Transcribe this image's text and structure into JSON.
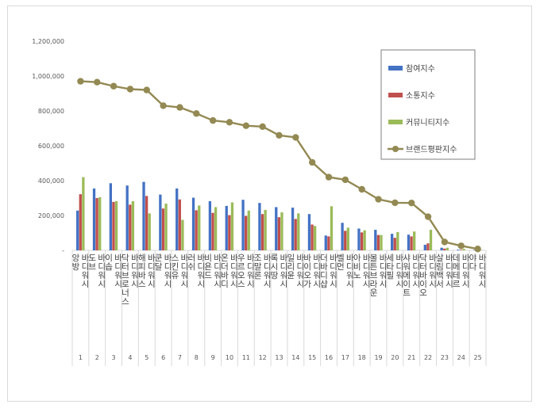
{
  "chart_data": {
    "type": "bar",
    "categories": [
      "앙방 바디워시",
      "도브 바디워시",
      "이솝 바디워시",
      "닥터브로너스 바디워시",
      "해피바스 바디워시",
      "쿤달 바디워시",
      "스킨유 바디워시",
      "러쉬 바디워시",
      "비욘드 바디워시",
      "온더바디 바디워시",
      "우르오스 바디워시",
      "조말론 바디워시",
      "록시땅 바디워시",
      "일리윤 바디워시",
      "바이오가 바디워시",
      "더바디샵 바디워시",
      "벨먼 바디워시",
      "아비노 바디워시",
      "몰튼브라운 바디워시",
      "세타필 바디워시",
      "샤워메이트 바디워시",
      "닥터바이오 바디워시",
      "살림백서 바디워시",
      "데메테르 바디워시",
      "야다 바디워시"
    ],
    "ranks": [
      "1",
      "2",
      "3",
      "4",
      "5",
      "6",
      "7",
      "8",
      "9",
      "10",
      "11",
      "12",
      "13",
      "14",
      "15",
      "16",
      "17",
      "18",
      "19",
      "20",
      "21",
      "22",
      "23",
      "24",
      "25"
    ],
    "series": [
      {
        "name": "참여지수",
        "color": "#4472c4",
        "values": [
          228000,
          355000,
          385000,
          372000,
          393000,
          320000,
          355000,
          302000,
          282000,
          255000,
          290000,
          272000,
          248000,
          245000,
          208000,
          85000,
          158000,
          125000,
          118000,
          95000,
          90000,
          32000,
          15000,
          4000,
          3000
        ]
      },
      {
        "name": "소통지수",
        "color": "#c0504d",
        "values": [
          322000,
          300000,
          278000,
          262000,
          312000,
          240000,
          292000,
          230000,
          215000,
          202000,
          198000,
          208000,
          190000,
          180000,
          148000,
          80000,
          112000,
          103000,
          88000,
          72000,
          80000,
          40000,
          10000,
          3000,
          2000
        ]
      },
      {
        "name": "커뮤니티지수",
        "color": "#9bbb59",
        "values": [
          420000,
          305000,
          282000,
          282000,
          212000,
          268000,
          175000,
          257000,
          248000,
          275000,
          228000,
          232000,
          218000,
          212000,
          140000,
          253000,
          130000,
          115000,
          88000,
          105000,
          108000,
          118000,
          15000,
          8000,
          3000
        ]
      },
      {
        "name": "브랜드평판지수",
        "color": "#938953",
        "type": "line",
        "values": [
          970000,
          965000,
          942000,
          925000,
          920000,
          830000,
          820000,
          785000,
          745000,
          735000,
          715000,
          710000,
          660000,
          648000,
          505000,
          420000,
          405000,
          350000,
          293000,
          273000,
          272000,
          193000,
          48000,
          26000,
          8000
        ]
      }
    ],
    "y_ticks": [
      "-",
      "200,000",
      "400,000",
      "600,000",
      "800,000",
      "1,000,000",
      "1,200,000"
    ],
    "ylim": [
      0,
      1200000
    ],
    "legend_position": "right",
    "grid": false
  }
}
